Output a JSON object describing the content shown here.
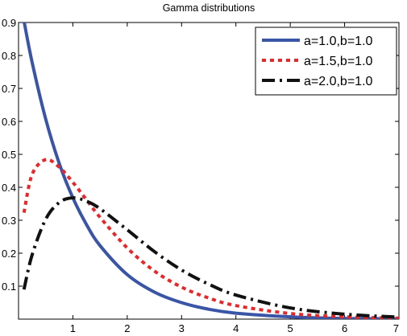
{
  "chart_data": {
    "type": "line",
    "title": "Gamma distributions",
    "xlabel": "",
    "ylabel": "",
    "xlim": [
      0,
      7
    ],
    "ylim": [
      0,
      0.9
    ],
    "xticks": [
      1,
      2,
      3,
      4,
      5,
      6,
      7
    ],
    "yticks": [
      0.1,
      0.2,
      0.3,
      0.4,
      0.5,
      0.6,
      0.7,
      0.8,
      0.9
    ],
    "xtick_labels": [
      "1",
      "2",
      "3",
      "4",
      "5",
      "6",
      "7"
    ],
    "ytick_labels": [
      "0.1",
      "0.2",
      "0.3",
      "0.4",
      "0.5",
      "0.6",
      "0.7",
      "0.8",
      "0.9"
    ],
    "grid": false,
    "legend_position": "top-right",
    "x": [
      0.1,
      0.25,
      0.5,
      0.75,
      1.0,
      1.25,
      1.5,
      2.0,
      2.5,
      3.0,
      3.5,
      4.0,
      5.0,
      6.0,
      7.0
    ],
    "series": [
      {
        "name": "a=1.0,b=1.0",
        "color": "#3b55a6",
        "style": "solid",
        "values": [
          0.905,
          0.779,
          0.607,
          0.472,
          0.368,
          0.287,
          0.223,
          0.135,
          0.082,
          0.05,
          0.03,
          0.018,
          0.007,
          0.002,
          0.001
        ]
      },
      {
        "name": "a=1.5,b=1.0",
        "color": "#e8272a",
        "style": "dotted",
        "values": [
          0.323,
          0.439,
          0.484,
          0.461,
          0.415,
          0.362,
          0.309,
          0.216,
          0.146,
          0.097,
          0.064,
          0.041,
          0.017,
          0.007,
          0.003
        ]
      },
      {
        "name": "a=2.0,b=1.0",
        "color": "#111111",
        "style": "dashdot",
        "values": [
          0.09,
          0.195,
          0.303,
          0.354,
          0.368,
          0.358,
          0.335,
          0.271,
          0.205,
          0.149,
          0.106,
          0.073,
          0.034,
          0.015,
          0.006
        ]
      }
    ]
  }
}
